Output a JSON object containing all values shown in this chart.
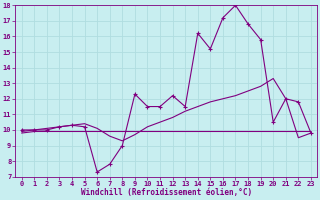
{
  "xlabel": "Windchill (Refroidissement éolien,°C)",
  "bg_color": "#c8eef0",
  "line_color": "#800080",
  "grid_color": "#b0dde0",
  "xlim": [
    -0.5,
    23.5
  ],
  "ylim": [
    7,
    18
  ],
  "xticks": [
    0,
    1,
    2,
    3,
    4,
    5,
    6,
    7,
    8,
    9,
    10,
    11,
    12,
    13,
    14,
    15,
    16,
    17,
    18,
    19,
    20,
    21,
    22,
    23
  ],
  "yticks": [
    7,
    8,
    9,
    10,
    11,
    12,
    13,
    14,
    15,
    16,
    17,
    18
  ],
  "main_y": [
    10.0,
    10.0,
    10.0,
    10.2,
    10.3,
    10.2,
    7.3,
    7.8,
    9.0,
    12.3,
    11.5,
    11.5,
    12.2,
    11.5,
    16.2,
    15.2,
    17.2,
    18.0,
    16.8,
    15.8,
    10.5,
    12.0,
    11.8,
    9.8
  ],
  "line2_y": [
    9.9,
    10.0,
    10.1,
    10.2,
    10.3,
    10.4,
    10.1,
    9.6,
    9.3,
    9.7,
    10.2,
    10.5,
    10.8,
    11.2,
    11.5,
    11.8,
    12.0,
    12.2,
    12.5,
    12.8,
    13.3,
    12.0,
    9.5,
    9.8
  ],
  "line3_y": [
    9.8,
    9.9,
    9.9,
    9.9,
    9.9,
    9.9,
    9.9,
    9.9,
    9.9,
    9.9,
    9.9,
    9.9,
    9.9,
    9.9,
    9.9,
    9.9,
    9.9,
    9.9,
    9.9,
    9.9,
    9.9,
    9.9,
    9.9,
    9.9
  ]
}
